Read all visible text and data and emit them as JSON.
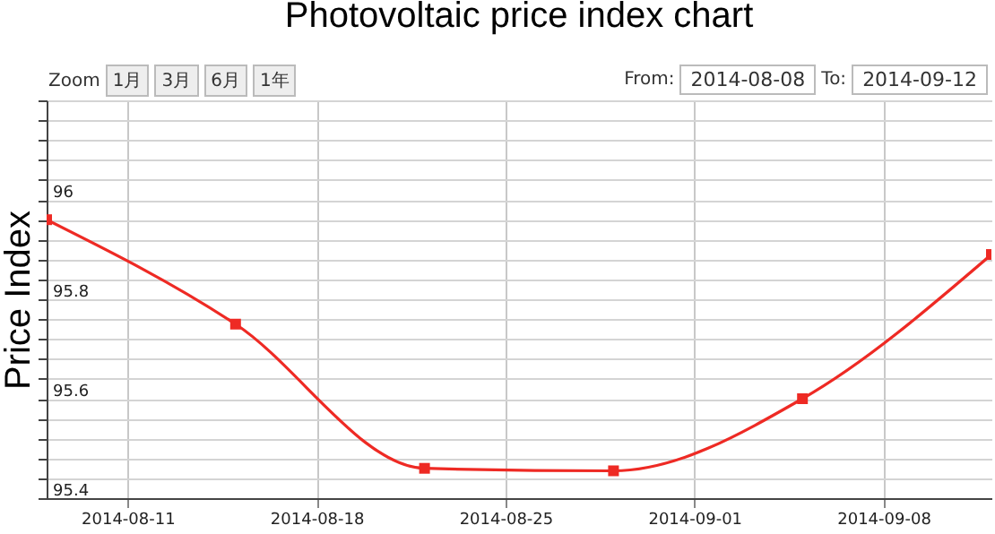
{
  "chart_data": {
    "type": "line",
    "title": "Photovoltaic price index chart",
    "ylabel": "Price Index",
    "annotations": [
      "Zoom",
      "1月",
      "3月",
      "6月",
      "1年",
      "From:",
      "2014-08-08",
      "To:",
      "2014-09-12"
    ],
    "x": [
      "2014-08-08",
      "2014-08-15",
      "2014-08-22",
      "2014-08-29",
      "2014-09-05",
      "2014-09-12"
    ],
    "series": [
      {
        "color": "#ee2a24",
        "values": [
          95.96,
          95.75,
          95.46,
          95.455,
          95.6,
          95.89
        ]
      }
    ],
    "xlim": [
      "2014-08-08",
      "2014-09-12"
    ],
    "xticks": [
      "2014-08-11",
      "2014-08-18",
      "2014-08-25",
      "2014-09-01",
      "2014-09-08"
    ],
    "ylim": [
      95.4,
      96.2
    ],
    "yticks": [
      95.4,
      {
        "value": 95.44,
        "label": null
      },
      {
        "value": 95.48,
        "label": null
      },
      {
        "value": 95.52,
        "label": null
      },
      {
        "value": 95.56,
        "label": null
      },
      95.6,
      {
        "value": 95.64,
        "label": null
      },
      {
        "value": 95.68,
        "label": null
      },
      {
        "value": 95.72,
        "label": null
      },
      {
        "value": 95.76,
        "label": null
      },
      95.8,
      {
        "value": 95.84,
        "label": null
      },
      {
        "value": 95.88,
        "label": null
      },
      {
        "value": 95.92,
        "label": null
      },
      {
        "value": 95.96,
        "label": null
      },
      96,
      {
        "value": 96.04,
        "label": null
      },
      {
        "value": 96.08,
        "label": null
      },
      {
        "value": 96.12,
        "label": null
      },
      {
        "value": 96.16,
        "label": null
      },
      {
        "value": 96.2,
        "label": null
      }
    ],
    "grid": true,
    "marker": "square",
    "line_style": "solid"
  }
}
